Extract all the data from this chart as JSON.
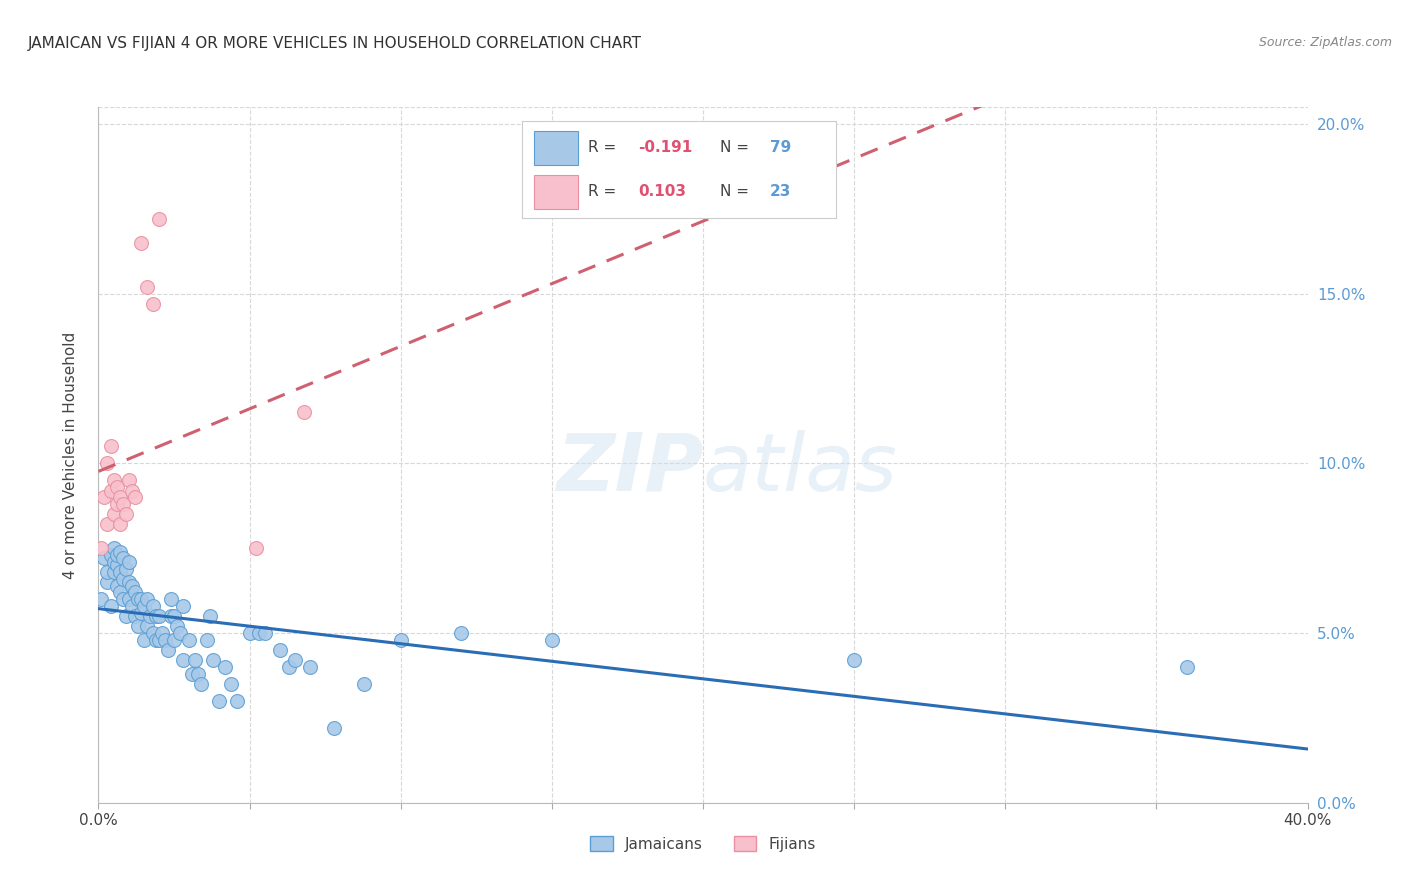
{
  "title": "JAMAICAN VS FIJIAN 4 OR MORE VEHICLES IN HOUSEHOLD CORRELATION CHART",
  "source": "Source: ZipAtlas.com",
  "ylabel": "4 or more Vehicles in Household",
  "watermark": "ZIPatlas",
  "jamaicans": {
    "R": -0.191,
    "N": 79,
    "color": "#a8c8e8",
    "edge_color": "#5a9fd4",
    "line_color": "#2a6db5",
    "x": [
      0.001,
      0.002,
      0.003,
      0.003,
      0.004,
      0.004,
      0.005,
      0.005,
      0.005,
      0.006,
      0.006,
      0.006,
      0.007,
      0.007,
      0.007,
      0.008,
      0.008,
      0.008,
      0.009,
      0.009,
      0.01,
      0.01,
      0.01,
      0.011,
      0.011,
      0.012,
      0.012,
      0.013,
      0.013,
      0.014,
      0.014,
      0.015,
      0.015,
      0.016,
      0.016,
      0.017,
      0.018,
      0.018,
      0.019,
      0.019,
      0.02,
      0.02,
      0.021,
      0.022,
      0.023,
      0.024,
      0.024,
      0.025,
      0.025,
      0.026,
      0.027,
      0.028,
      0.028,
      0.03,
      0.031,
      0.032,
      0.033,
      0.034,
      0.036,
      0.037,
      0.038,
      0.04,
      0.042,
      0.044,
      0.046,
      0.05,
      0.053,
      0.055,
      0.06,
      0.063,
      0.065,
      0.07,
      0.078,
      0.088,
      0.1,
      0.12,
      0.15,
      0.25,
      0.36
    ],
    "y": [
      0.06,
      0.072,
      0.065,
      0.068,
      0.058,
      0.073,
      0.068,
      0.071,
      0.075,
      0.064,
      0.07,
      0.073,
      0.062,
      0.068,
      0.074,
      0.06,
      0.066,
      0.072,
      0.055,
      0.069,
      0.06,
      0.065,
      0.071,
      0.058,
      0.064,
      0.055,
      0.062,
      0.052,
      0.06,
      0.056,
      0.06,
      0.048,
      0.058,
      0.052,
      0.06,
      0.055,
      0.05,
      0.058,
      0.048,
      0.055,
      0.048,
      0.055,
      0.05,
      0.048,
      0.045,
      0.055,
      0.06,
      0.048,
      0.055,
      0.052,
      0.05,
      0.042,
      0.058,
      0.048,
      0.038,
      0.042,
      0.038,
      0.035,
      0.048,
      0.055,
      0.042,
      0.03,
      0.04,
      0.035,
      0.03,
      0.05,
      0.05,
      0.05,
      0.045,
      0.04,
      0.042,
      0.04,
      0.022,
      0.035,
      0.048,
      0.05,
      0.048,
      0.042,
      0.04
    ]
  },
  "fijians": {
    "R": 0.103,
    "N": 23,
    "color": "#f8c0cc",
    "edge_color": "#e890a0",
    "line_color": "#d06070",
    "x": [
      0.001,
      0.002,
      0.003,
      0.003,
      0.004,
      0.004,
      0.005,
      0.005,
      0.006,
      0.006,
      0.007,
      0.007,
      0.008,
      0.009,
      0.01,
      0.011,
      0.012,
      0.014,
      0.016,
      0.018,
      0.02,
      0.052,
      0.068
    ],
    "y": [
      0.075,
      0.09,
      0.082,
      0.1,
      0.092,
      0.105,
      0.085,
      0.095,
      0.088,
      0.093,
      0.09,
      0.082,
      0.088,
      0.085,
      0.095,
      0.092,
      0.09,
      0.165,
      0.152,
      0.147,
      0.172,
      0.075,
      0.115
    ]
  },
  "xlim": [
    0.0,
    0.4
  ],
  "ylim": [
    0.0,
    0.205
  ],
  "xticks": [
    0.0,
    0.05,
    0.1,
    0.15,
    0.2,
    0.25,
    0.3,
    0.35,
    0.4
  ],
  "xtick_labels": [
    "0.0%",
    "",
    "",
    "",
    "",
    "",
    "",
    "",
    "40.0%"
  ],
  "yticks": [
    0.0,
    0.05,
    0.1,
    0.15,
    0.2
  ],
  "ytick_labels_right": [
    "0.0%",
    "5.0%",
    "10.0%",
    "15.0%",
    "20.0%"
  ],
  "legend_label1": "Jamaicans",
  "legend_label2": "Fijians",
  "background_color": "#ffffff",
  "grid_color": "#d8d8d8",
  "legend_R1": "-0.191",
  "legend_N1": "79",
  "legend_R2": "0.103",
  "legend_N2": "23"
}
